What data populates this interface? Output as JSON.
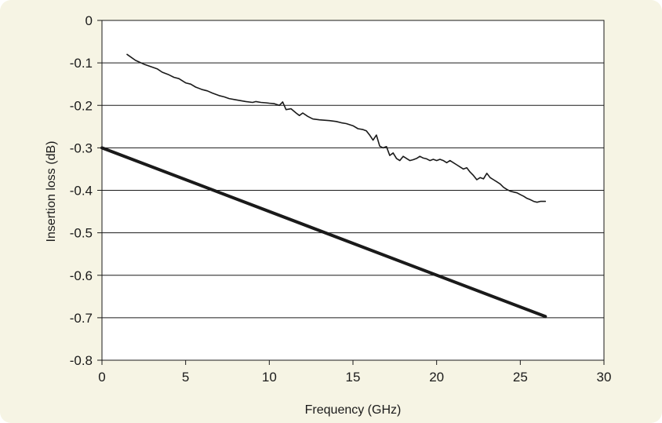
{
  "colors": {
    "panel_background": "#f6f4e4",
    "plot_background": "#ffffff",
    "series_color": "#1a1a1a",
    "grid_color": "#1a1a1a"
  },
  "chart_data": {
    "type": "line",
    "title": "",
    "xlabel": "Frequency (GHz)",
    "ylabel": "Insertion loss (dB)",
    "xlim": [
      0,
      30
    ],
    "ylim": [
      -0.8,
      0
    ],
    "x_ticks": [
      0,
      5,
      10,
      15,
      20,
      25,
      30
    ],
    "x_tick_labels": [
      "0",
      "5",
      "10",
      "15",
      "20",
      "25",
      "30"
    ],
    "y_ticks": [
      0,
      -0.1,
      -0.2,
      -0.3,
      -0.4,
      -0.5,
      -0.6,
      -0.7,
      -0.8
    ],
    "y_tick_labels": [
      "0",
      "-0.1",
      "-0.2",
      "-0.3",
      "-0.4",
      "-0.5",
      "-0.6",
      "-0.7",
      "-0.8"
    ],
    "grid": "horizontal",
    "legend": "none",
    "series": [
      {
        "style": "thin",
        "x": [
          1.5,
          2.0,
          2.5,
          3.0,
          3.3,
          3.6,
          4.0,
          4.3,
          4.6,
          5.0,
          5.3,
          5.6,
          6.0,
          6.3,
          6.6,
          7.0,
          7.3,
          7.6,
          8.0,
          8.3,
          8.6,
          9.0,
          9.2,
          9.5,
          9.8,
          10.0,
          10.3,
          10.6,
          10.8,
          11.0,
          11.3,
          11.6,
          11.8,
          12.0,
          12.3,
          12.6,
          13.0,
          13.3,
          13.6,
          14.0,
          14.3,
          14.6,
          15.0,
          15.3,
          15.6,
          15.8,
          16.0,
          16.2,
          16.4,
          16.6,
          16.8,
          17.0,
          17.2,
          17.4,
          17.6,
          17.8,
          18.0,
          18.2,
          18.4,
          18.6,
          18.8,
          19.0,
          19.2,
          19.4,
          19.6,
          19.8,
          20.0,
          20.2,
          20.4,
          20.6,
          20.8,
          21.0,
          21.2,
          21.4,
          21.6,
          21.8,
          22.0,
          22.2,
          22.4,
          22.6,
          22.8,
          23.0,
          23.2,
          23.4,
          23.6,
          23.8,
          24.0,
          24.2,
          24.4,
          24.6,
          24.8,
          25.0,
          25.2,
          25.4,
          25.6,
          25.8,
          26.0,
          26.2,
          26.5
        ],
        "y": [
          -0.08,
          -0.094,
          -0.103,
          -0.11,
          -0.114,
          -0.122,
          -0.128,
          -0.134,
          -0.137,
          -0.147,
          -0.15,
          -0.157,
          -0.163,
          -0.166,
          -0.171,
          -0.177,
          -0.18,
          -0.184,
          -0.187,
          -0.189,
          -0.191,
          -0.193,
          -0.191,
          -0.193,
          -0.194,
          -0.195,
          -0.196,
          -0.2,
          -0.192,
          -0.21,
          -0.208,
          -0.218,
          -0.224,
          -0.218,
          -0.226,
          -0.232,
          -0.234,
          -0.235,
          -0.236,
          -0.238,
          -0.241,
          -0.243,
          -0.248,
          -0.255,
          -0.257,
          -0.26,
          -0.27,
          -0.282,
          -0.27,
          -0.296,
          -0.3,
          -0.297,
          -0.318,
          -0.312,
          -0.325,
          -0.33,
          -0.32,
          -0.325,
          -0.33,
          -0.328,
          -0.325,
          -0.32,
          -0.324,
          -0.326,
          -0.33,
          -0.327,
          -0.33,
          -0.327,
          -0.33,
          -0.335,
          -0.33,
          -0.335,
          -0.34,
          -0.345,
          -0.35,
          -0.347,
          -0.357,
          -0.365,
          -0.375,
          -0.37,
          -0.373,
          -0.36,
          -0.37,
          -0.375,
          -0.38,
          -0.385,
          -0.393,
          -0.398,
          -0.402,
          -0.404,
          -0.406,
          -0.41,
          -0.414,
          -0.419,
          -0.422,
          -0.426,
          -0.428,
          -0.426,
          -0.426
        ]
      },
      {
        "style": "thick",
        "x": [
          0,
          26.5
        ],
        "y": [
          -0.3,
          -0.697
        ]
      }
    ]
  }
}
